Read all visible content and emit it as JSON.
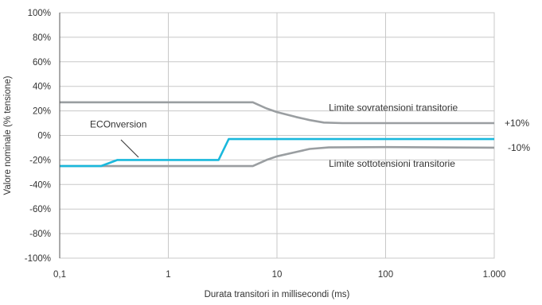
{
  "chart_data": {
    "type": "line",
    "xscale": "log",
    "xlim": [
      0.1,
      1000
    ],
    "ylim": [
      -100,
      100
    ],
    "xlabel": "Durata transitori in millisecondi (ms)",
    "ylabel": "Valore nominale (% tensione)",
    "xticks": [
      {
        "value": 0.1,
        "label": "0,1"
      },
      {
        "value": 1,
        "label": "1"
      },
      {
        "value": 10,
        "label": "10"
      },
      {
        "value": 100,
        "label": "100"
      },
      {
        "value": 1000,
        "label": "1.000"
      }
    ],
    "yticks": [
      {
        "value": 100,
        "label": "100%"
      },
      {
        "value": 80,
        "label": "80%"
      },
      {
        "value": 60,
        "label": "60%"
      },
      {
        "value": 40,
        "label": "40%"
      },
      {
        "value": 20,
        "label": "20%"
      },
      {
        "value": 0,
        "label": "0%"
      },
      {
        "value": -20,
        "label": "-20%"
      },
      {
        "value": -40,
        "label": "-40%"
      },
      {
        "value": -60,
        "label": "-60%"
      },
      {
        "value": -80,
        "label": "-80%"
      },
      {
        "value": -100,
        "label": "-100%"
      }
    ],
    "grid": true,
    "colors": {
      "limits": "#9a9ea1",
      "econversion": "#1ab8dc",
      "grid": "#c8c8c8",
      "axis": "#555555"
    },
    "series": [
      {
        "name": "Limite sovratensioni transitorie",
        "color": "#9a9ea1",
        "points": [
          [
            0.1,
            27
          ],
          [
            6,
            27
          ],
          [
            8,
            22
          ],
          [
            10,
            19
          ],
          [
            15,
            15
          ],
          [
            20,
            12.5
          ],
          [
            27,
            10.5
          ],
          [
            40,
            10
          ],
          [
            1000,
            10
          ]
        ]
      },
      {
        "name": "Limite sottotensioni transitorie",
        "color": "#9a9ea1",
        "points": [
          [
            0.1,
            -25
          ],
          [
            6,
            -25
          ],
          [
            8,
            -20
          ],
          [
            10,
            -17
          ],
          [
            15,
            -13.5
          ],
          [
            20,
            -11
          ],
          [
            30,
            -9.8
          ],
          [
            100,
            -9.5
          ],
          [
            1000,
            -10
          ]
        ]
      },
      {
        "name": "ECOnversion",
        "color": "#1ab8dc",
        "points": [
          [
            0.1,
            -25
          ],
          [
            0.24,
            -25
          ],
          [
            0.34,
            -20
          ],
          [
            2.9,
            -20
          ],
          [
            3.6,
            -3
          ],
          [
            1000,
            -3
          ]
        ]
      }
    ],
    "annotations": [
      {
        "id": "upper-limit-label",
        "text": "Limite sovratensioni transitorie",
        "x": 30,
        "y": 20
      },
      {
        "id": "lower-limit-label",
        "text": "Limite sottotensioni transitorie",
        "x": 30,
        "y": -25.5
      },
      {
        "id": "econversion-label",
        "text": "ECOnversion",
        "x": 0.19,
        "y": 6.5
      },
      {
        "id": "plus10-label",
        "text": "+10%",
        "y": 10
      },
      {
        "id": "minus10-label",
        "text": "-10%",
        "y": -10
      }
    ]
  }
}
